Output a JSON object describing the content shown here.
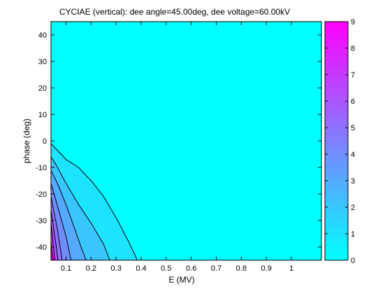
{
  "chart_data": {
    "type": "contour",
    "title": "CYCIAE (vertical): dee angle=45.00deg, dee voltage=60.00kV",
    "xlabel": "E (MV)",
    "ylabel": "phase (deg)",
    "xlim": [
      0.04,
      1.12
    ],
    "ylim": [
      -45,
      45
    ],
    "xticks": [
      0.1,
      0.2,
      0.3,
      0.4,
      0.5,
      0.6,
      0.7,
      0.8,
      0.9,
      1
    ],
    "yticks": [
      -40,
      -30,
      -20,
      -10,
      0,
      10,
      20,
      30,
      40
    ],
    "colorbar": {
      "ticks": [
        0,
        1,
        2,
        3,
        4,
        5,
        6,
        7,
        8,
        9
      ],
      "range": [
        0,
        9
      ],
      "colormap": "cool"
    },
    "background_level": 0,
    "contours": [
      {
        "level": 1,
        "points": [
          [
            0.04,
            -1
          ],
          [
            0.06,
            -3
          ],
          [
            0.1,
            -7
          ],
          [
            0.15,
            -10
          ],
          [
            0.2,
            -15
          ],
          [
            0.25,
            -21
          ],
          [
            0.3,
            -29
          ],
          [
            0.35,
            -38
          ],
          [
            0.385,
            -45
          ]
        ]
      },
      {
        "level": 2,
        "points": [
          [
            0.04,
            -6
          ],
          [
            0.06,
            -9
          ],
          [
            0.1,
            -16
          ],
          [
            0.15,
            -24
          ],
          [
            0.2,
            -31
          ],
          [
            0.25,
            -39
          ],
          [
            0.275,
            -45
          ]
        ]
      },
      {
        "level": 3,
        "points": [
          [
            0.04,
            -11
          ],
          [
            0.07,
            -17
          ],
          [
            0.1,
            -24
          ],
          [
            0.13,
            -32
          ],
          [
            0.16,
            -40
          ],
          [
            0.18,
            -45
          ]
        ]
      },
      {
        "level": 4,
        "points": [
          [
            0.04,
            -16
          ],
          [
            0.07,
            -26
          ],
          [
            0.1,
            -36
          ],
          [
            0.12,
            -45
          ]
        ]
      },
      {
        "level": 5,
        "points": [
          [
            0.04,
            -21
          ],
          [
            0.065,
            -33
          ],
          [
            0.085,
            -45
          ]
        ]
      },
      {
        "level": 6,
        "points": [
          [
            0.04,
            -26
          ],
          [
            0.058,
            -38
          ],
          [
            0.068,
            -45
          ]
        ]
      },
      {
        "level": 7,
        "points": [
          [
            0.04,
            -31
          ],
          [
            0.05,
            -40
          ],
          [
            0.056,
            -45
          ]
        ]
      },
      {
        "level": 8,
        "points": [
          [
            0.04,
            -38
          ],
          [
            0.047,
            -45
          ]
        ]
      }
    ],
    "corner_max": {
      "x": 0.04,
      "y": -45,
      "value": 8.7
    }
  },
  "colors": {
    "frame": "#000000",
    "contour_line": "#000000"
  }
}
